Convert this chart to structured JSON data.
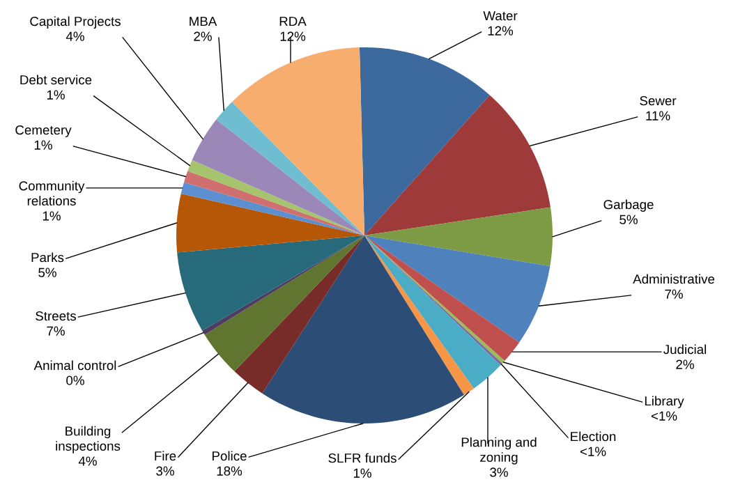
{
  "chart_data": {
    "type": "pie",
    "categories": [
      "Water",
      "Sewer",
      "Garbage",
      "Administrative",
      "Judicial",
      "Library",
      "Election",
      "Planning and zoning",
      "SLFR funds",
      "Police",
      "Fire",
      "Building inspections",
      "Animal control",
      "Streets",
      "Parks",
      "Community relations",
      "Cemetery",
      "Debt service",
      "Capital Projects",
      "MBA",
      "RDA"
    ],
    "values": [
      12,
      11,
      5,
      7,
      2,
      0.3,
      0.2,
      3,
      1,
      18,
      3,
      4,
      0.4,
      7,
      5,
      1,
      1,
      1,
      4,
      2,
      12
    ],
    "value_labels": [
      "12%",
      "11%",
      "5%",
      "7%",
      "2%",
      "<1%",
      "<1%",
      "3%",
      "1%",
      "18%",
      "3%",
      "4%",
      "0%",
      "7%",
      "5%",
      "1%",
      "1%",
      "1%",
      "4%",
      "2%",
      "12%"
    ],
    "colors": [
      "#3c6a9e",
      "#9e3b3a",
      "#7d9a44",
      "#4f81bd",
      "#c0504d",
      "#9bbb59",
      "#8064a2",
      "#4bacc6",
      "#f79646",
      "#2c4d75",
      "#772c2a",
      "#5f7530",
      "#4d3b62",
      "#276a7c",
      "#b65708",
      "#5b8fd0",
      "#d0706e",
      "#a5c46d",
      "#9b87b8",
      "#6fbdd1",
      "#f7ad6d"
    ],
    "legend": false
  }
}
